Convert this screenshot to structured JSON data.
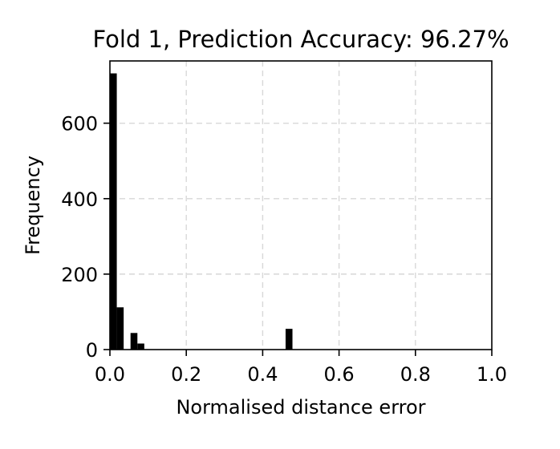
{
  "chart_data": {
    "type": "bar",
    "title": "Fold 1, Prediction Accuracy: 96.27%",
    "xlabel": "Normalised distance error",
    "ylabel": "Frequency",
    "xlim": [
      0.0,
      1.0
    ],
    "ylim": [
      0,
      765
    ],
    "xticks": [
      "0.0",
      "0.2",
      "0.4",
      "0.6",
      "0.8",
      "1.0"
    ],
    "yticks": [
      "0",
      "200",
      "400",
      "600"
    ],
    "ytick_values": [
      0,
      200,
      400,
      600
    ],
    "xtick_values": [
      0.0,
      0.2,
      0.4,
      0.6,
      0.8,
      1.0
    ],
    "grid": true,
    "bar_color": "#000000",
    "bins": [
      {
        "x0": 0.0,
        "x1": 0.018,
        "value": 732
      },
      {
        "x0": 0.018,
        "x1": 0.036,
        "value": 112
      },
      {
        "x0": 0.054,
        "x1": 0.072,
        "value": 44
      },
      {
        "x0": 0.072,
        "x1": 0.09,
        "value": 16
      },
      {
        "x0": 0.46,
        "x1": 0.478,
        "value": 55
      }
    ]
  }
}
